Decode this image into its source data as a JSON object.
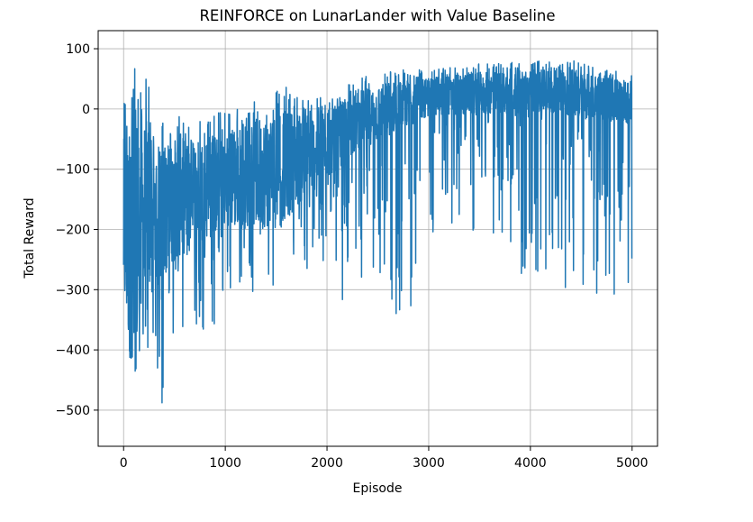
{
  "chart_data": {
    "type": "line",
    "title": "REINFORCE on LunarLander with Value Baseline",
    "xlabel": "Episode",
    "ylabel": "Total Reward",
    "xlim": [
      -250,
      5250
    ],
    "ylim": [
      -560,
      130
    ],
    "xticks": [
      0,
      1000,
      2000,
      3000,
      4000,
      5000
    ],
    "xtick_labels": [
      "0",
      "1000",
      "2000",
      "3000",
      "4000",
      "5000"
    ],
    "yticks": [
      100,
      0,
      -100,
      -200,
      -300,
      -400,
      -500
    ],
    "ytick_labels": [
      "100",
      "0",
      "−100",
      "−200",
      "−300",
      "−400",
      "−500"
    ],
    "grid": true,
    "legend": "none",
    "line_color": "#1f77b4",
    "series": [
      {
        "name": "",
        "x_range": [
          0,
          4999
        ],
        "description_of_trend_points": [
          {
            "x": 0,
            "y_low": -420,
            "y_mid": -200,
            "y_high": 15
          },
          {
            "x": 100,
            "y_low": -485,
            "y_mid": -230,
            "y_high": 90
          },
          {
            "x": 150,
            "y_low": -420,
            "y_mid": -200,
            "y_high": 97
          },
          {
            "x": 350,
            "y_low": -530,
            "y_mid": -180,
            "y_high": -10
          },
          {
            "x": 500,
            "y_low": -400,
            "y_mid": -150,
            "y_high": -5
          },
          {
            "x": 1000,
            "y_low": -350,
            "y_mid": -120,
            "y_high": -5
          },
          {
            "x": 1500,
            "y_low": -290,
            "y_mid": -100,
            "y_high": 40
          },
          {
            "x": 2000,
            "y_low": -260,
            "y_mid": -60,
            "y_high": 20
          },
          {
            "x": 2300,
            "y_low": -385,
            "y_mid": -20,
            "y_high": 50
          },
          {
            "x": 2600,
            "y_low": -405,
            "y_mid": 0,
            "y_high": 65
          },
          {
            "x": 3000,
            "y_low": -290,
            "y_mid": 20,
            "y_high": 65
          },
          {
            "x": 3500,
            "y_low": -220,
            "y_mid": 25,
            "y_high": 75
          },
          {
            "x": 4000,
            "y_low": -290,
            "y_mid": 30,
            "y_high": 80
          },
          {
            "x": 4500,
            "y_low": -300,
            "y_mid": 25,
            "y_high": 80
          },
          {
            "x": 4999,
            "y_low": -320,
            "y_mid": 10,
            "y_high": 60
          }
        ]
      }
    ]
  }
}
